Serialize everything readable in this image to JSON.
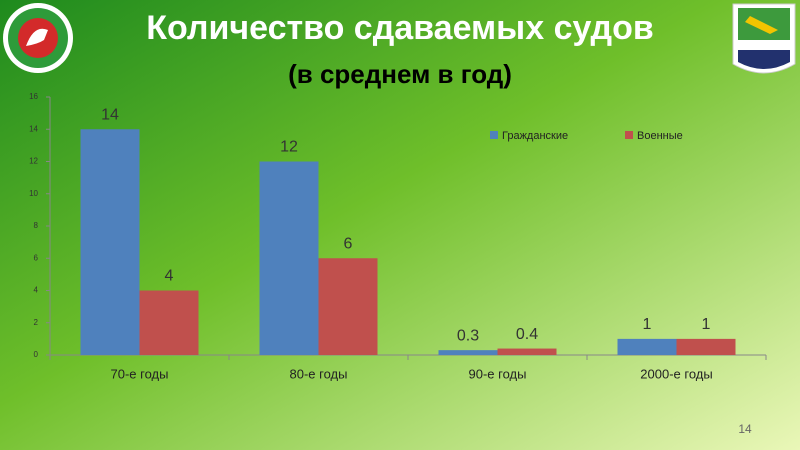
{
  "chart_data": {
    "type": "bar",
    "title": "Количество сдаваемых судов",
    "subtitle": "(в среднем в год)",
    "categories": [
      "70-е годы",
      "80-е годы",
      "90-е годы",
      "2000-е годы"
    ],
    "series": [
      {
        "name": "Гражданские",
        "color": "#4f81bd",
        "values": [
          14,
          12,
          0.3,
          1
        ]
      },
      {
        "name": "Военные",
        "color": "#c0504d",
        "values": [
          4,
          6,
          0.4,
          1
        ]
      }
    ],
    "ylim": [
      0,
      16
    ],
    "yticks": [
      0,
      2,
      4,
      6,
      8,
      10,
      12,
      14,
      16
    ],
    "grid": false,
    "legend": "top-right"
  },
  "slide_number": "14"
}
